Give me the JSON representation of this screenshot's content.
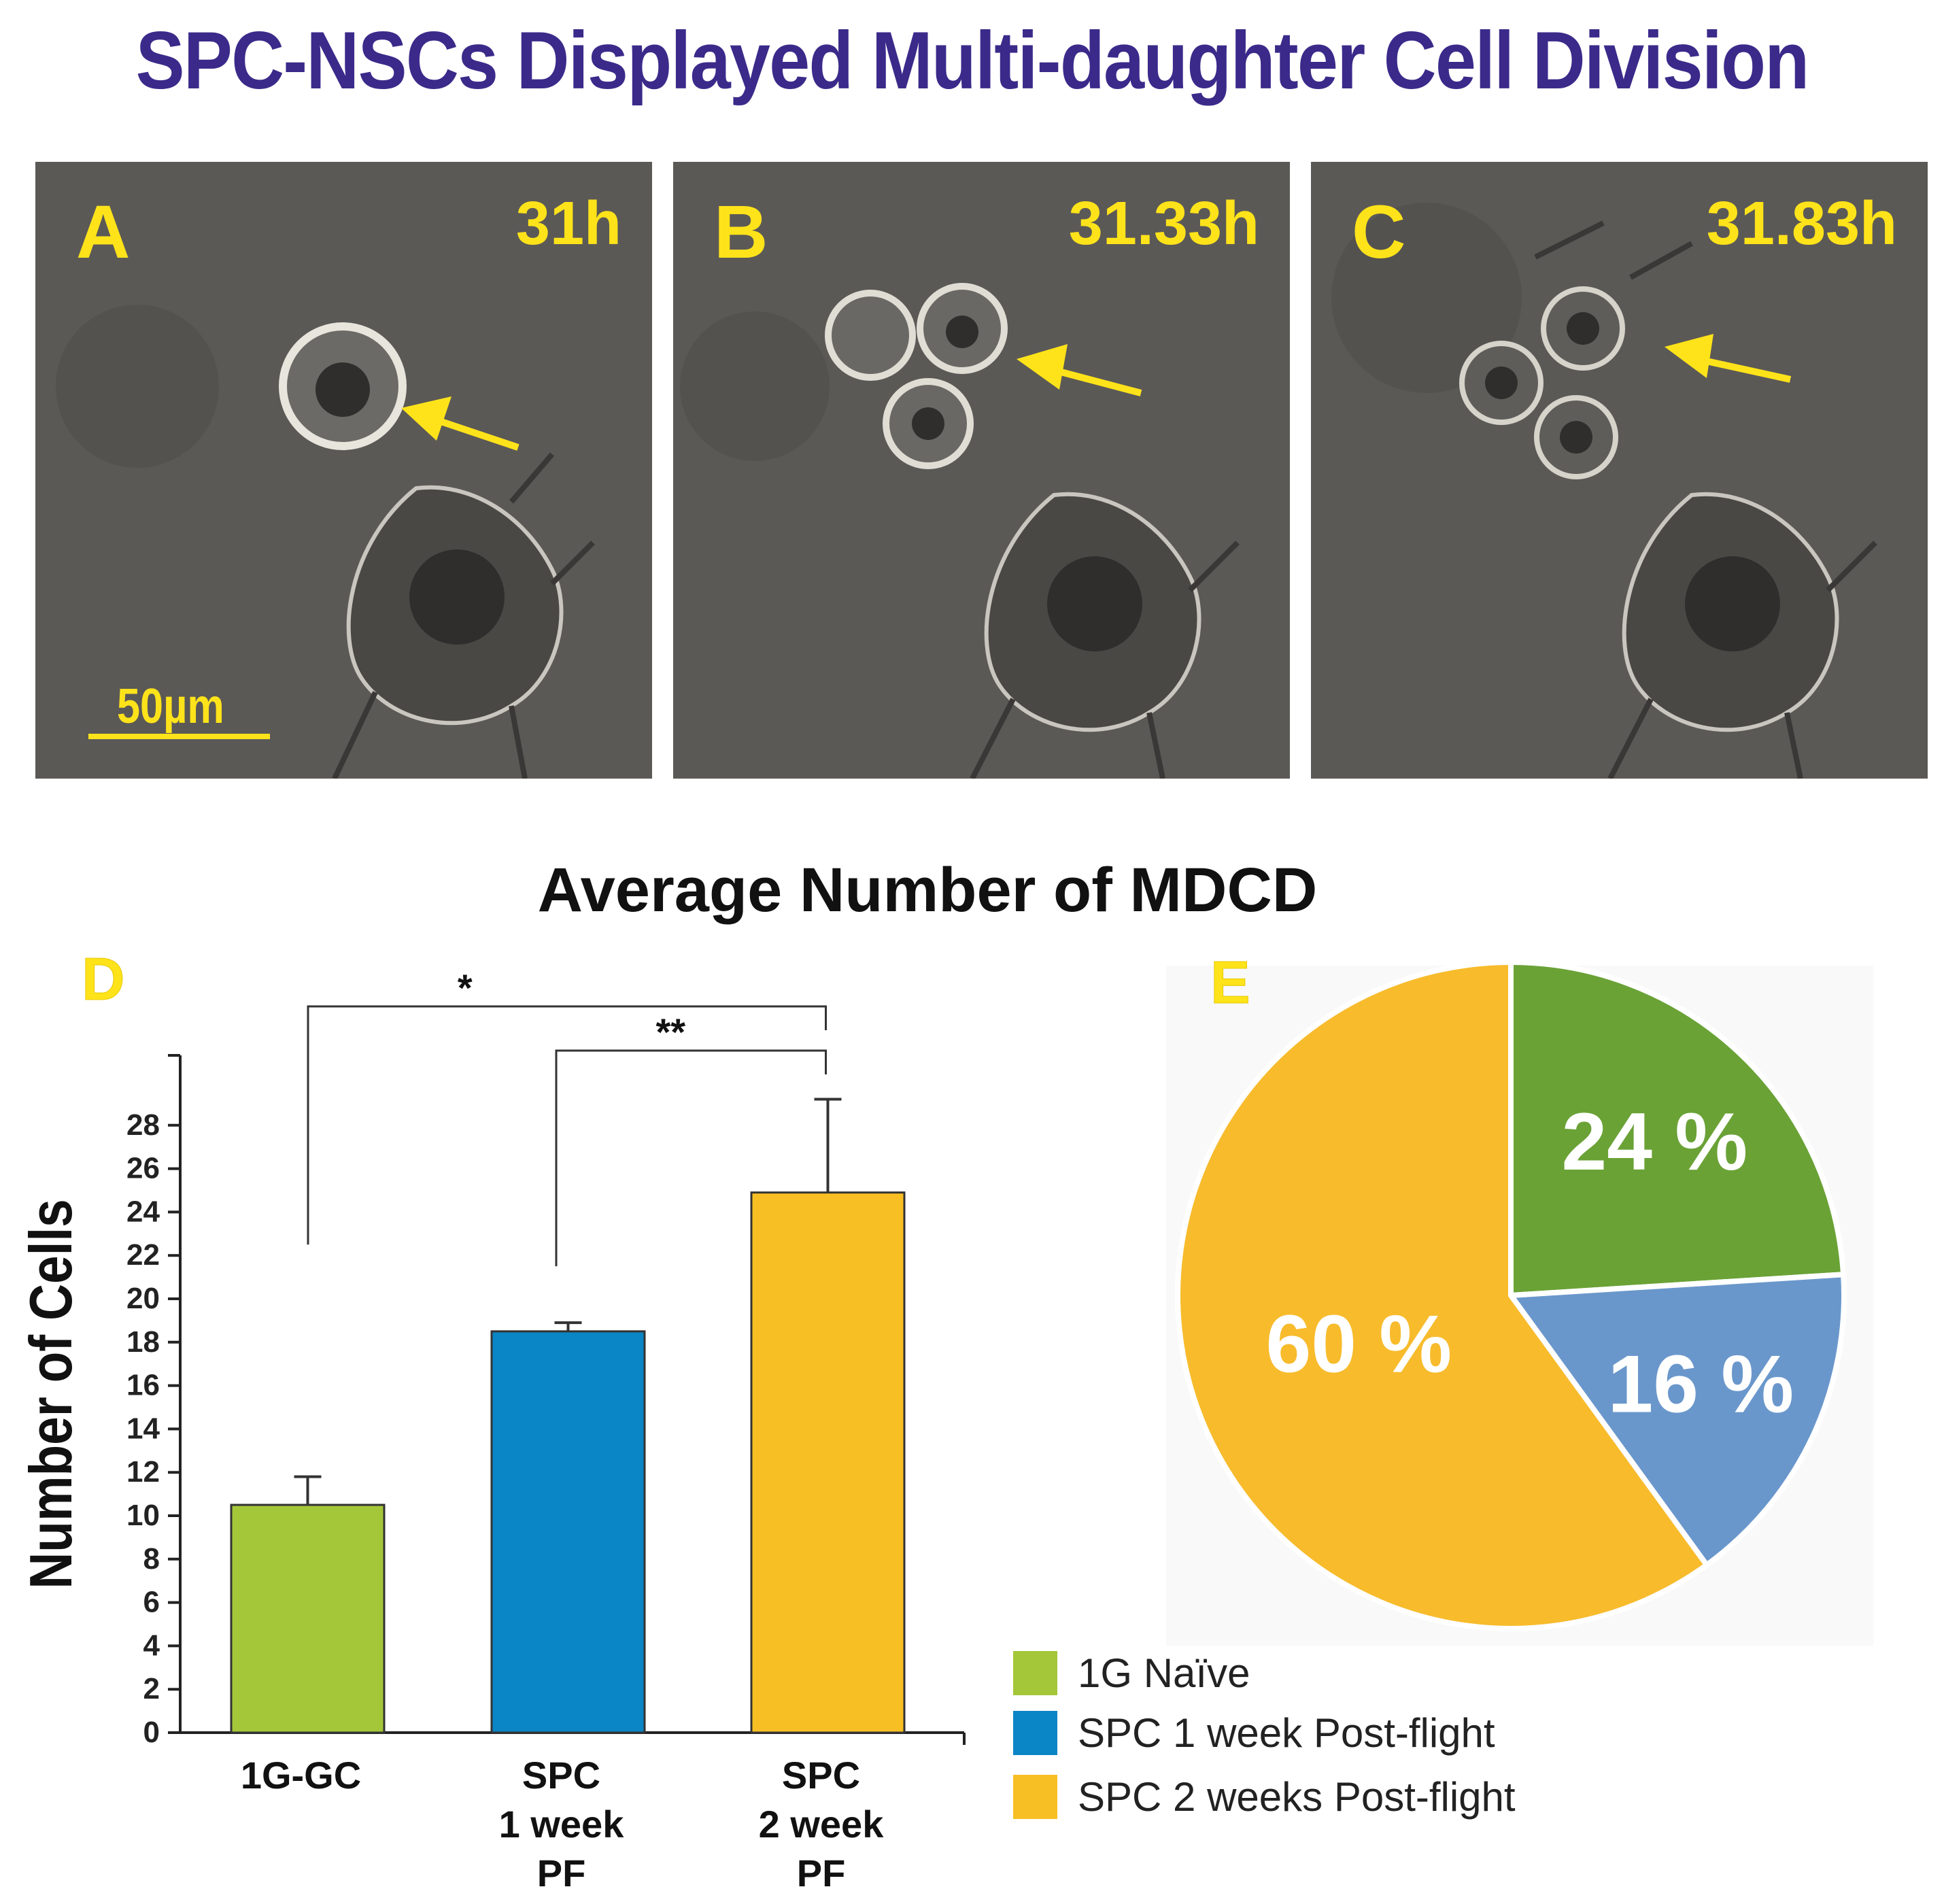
{
  "figure_title": "SPC-NSCs Displayed Multi-daughter Cell Division",
  "panels": [
    {
      "letter": "A",
      "time": "31h"
    },
    {
      "letter": "B",
      "time": "31.33h"
    },
    {
      "letter": "C",
      "time": "31.83h"
    }
  ],
  "scale_bar_label": "50µm",
  "colors": {
    "title": "#3b2a8a",
    "panel_label": "#ffe31a",
    "arrow": "#ffe31a",
    "green": "#a4c639",
    "blue": "#0a85c6",
    "orange": "#f8bf24",
    "pie_green": "#6aa236",
    "pie_blue": "#6a97cb",
    "pie_orange": "#f7bb2c"
  },
  "chart_data": [
    {
      "type": "bar",
      "panel_letter": "D",
      "title": "Average Number of MDCD",
      "xlabel": "",
      "ylabel": "Number of Cells",
      "ylim": [
        0,
        32
      ],
      "yticks": [
        0,
        2,
        4,
        6,
        8,
        10,
        12,
        14,
        16,
        18,
        20,
        22,
        24,
        26,
        28
      ],
      "categories": [
        {
          "lines": [
            "1G-GC"
          ]
        },
        {
          "lines": [
            "SPC",
            "1 week",
            "PF"
          ]
        },
        {
          "lines": [
            "SPC",
            "2 week",
            "PF"
          ]
        }
      ],
      "values": [
        10.5,
        18.5,
        24.9
      ],
      "errors": [
        1.3,
        0.4,
        4.3
      ],
      "significance": [
        {
          "from": 0,
          "to": 2,
          "label": "*"
        },
        {
          "from": 1,
          "to": 2,
          "label": "**"
        }
      ]
    },
    {
      "type": "pie",
      "panel_letter": "E",
      "slices": [
        {
          "label": "1G Naïve",
          "value": 24,
          "text": "24 %"
        },
        {
          "label": "SPC 1 week Post-flight",
          "value": 16,
          "text": "16 %"
        },
        {
          "label": "SPC 2 weeks Post-flight",
          "value": 60,
          "text": "60 %"
        }
      ]
    }
  ],
  "legend": [
    {
      "label": "1G Naïve"
    },
    {
      "label": "SPC 1 week Post-flight"
    },
    {
      "label": "SPC 2 weeks Post-flight"
    }
  ]
}
